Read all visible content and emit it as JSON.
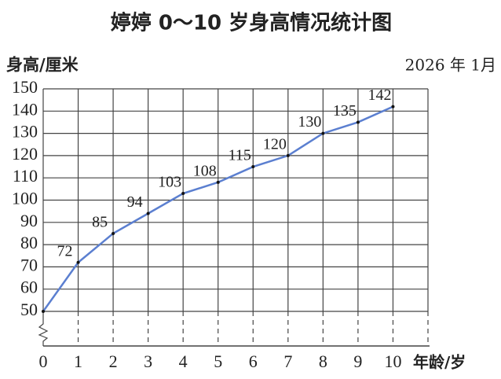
{
  "chart_data": {
    "type": "line",
    "title": "婷婷 0～10 岁身高情况统计图",
    "y_label": "身高/厘米",
    "x_label": "年龄/岁",
    "date": "2026 年 1月",
    "x": [
      0,
      1,
      2,
      3,
      4,
      5,
      6,
      7,
      8,
      9,
      10
    ],
    "series": [
      {
        "color": "#5b7fd0",
        "values": [
          50,
          72,
          85,
          94,
          103,
          108,
          115,
          120,
          130,
          135,
          142
        ]
      }
    ],
    "xlim": [
      0,
      11
    ],
    "xticks": [
      0,
      1,
      2,
      3,
      4,
      5,
      6,
      7,
      8,
      9,
      10
    ],
    "ylim": [
      50,
      150
    ],
    "yticks": [
      50,
      60,
      70,
      80,
      90,
      100,
      110,
      120,
      130,
      140,
      150
    ],
    "grid": true
  }
}
